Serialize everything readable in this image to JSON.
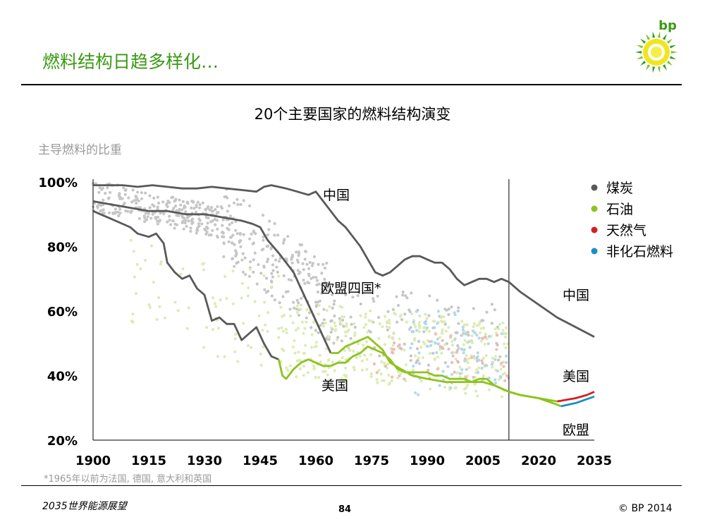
{
  "header": {
    "title": "燃料结构日趋多样化…",
    "logo_text": "bp"
  },
  "footer": {
    "left": "2035世界能源展望",
    "page": "84",
    "copyright": "© BP 2014"
  },
  "colors": {
    "title_green": "#3a9a14",
    "coal": "#595959",
    "oil": "#8dc41c",
    "gas": "#d42020",
    "non_fossil": "#1a8fc4"
  },
  "chart_data": {
    "type": "line",
    "title": "20个主要国家的燃料结构演变",
    "ylabel": "主导燃料的比重",
    "xlim": [
      1900,
      2035
    ],
    "ylim": [
      20,
      100
    ],
    "x_ticks": [
      1900,
      1915,
      1930,
      1945,
      1960,
      1975,
      1990,
      2005,
      2020,
      2035
    ],
    "y_ticks": [
      {
        "v": 20,
        "label": "20%"
      },
      {
        "v": 40,
        "label": "40%"
      },
      {
        "v": 60,
        "label": "60%"
      },
      {
        "v": 80,
        "label": "80%"
      },
      {
        "v": 100,
        "label": "100%"
      }
    ],
    "projection_start": 2012,
    "footnote": "*1965年以前为法国, 德国, 意大利和英国",
    "legend": [
      {
        "name": "煤炭",
        "color": "#595959"
      },
      {
        "name": "石油",
        "color": "#8dc41c"
      },
      {
        "name": "天然气",
        "color": "#d42020"
      },
      {
        "name": "非化石燃料",
        "color": "#1a8fc4"
      }
    ],
    "annotations": [
      {
        "text": "中国",
        "x": 1901,
        "y": 91
      },
      {
        "text": "欧盟四国*",
        "x": 1901,
        "y": 75
      },
      {
        "text": "美国",
        "x": 1901,
        "y": 61
      },
      {
        "text": "中国",
        "x": 2015,
        "y": 63
      },
      {
        "text": "美国",
        "x": 2015,
        "y": 40
      },
      {
        "text": "欧盟",
        "x": 2015,
        "y": 23
      }
    ],
    "series": [
      {
        "name": "中国",
        "segments": [
          {
            "fuel": "coal",
            "points": [
              [
                1900,
                99
              ],
              [
                1904,
                99
              ],
              [
                1908,
                99
              ],
              [
                1912,
                98.5
              ],
              [
                1916,
                99
              ],
              [
                1920,
                98.5
              ],
              [
                1924,
                98
              ],
              [
                1928,
                98
              ],
              [
                1932,
                98.5
              ],
              [
                1936,
                98
              ],
              [
                1940,
                97.5
              ],
              [
                1944,
                97
              ],
              [
                1946,
                98.5
              ],
              [
                1948,
                99
              ],
              [
                1950,
                98.5
              ],
              [
                1952,
                98
              ],
              [
                1955,
                97
              ],
              [
                1958,
                96
              ],
              [
                1960,
                97
              ],
              [
                1962,
                94
              ],
              [
                1964,
                91
              ],
              [
                1966,
                88
              ],
              [
                1968,
                86
              ],
              [
                1970,
                83
              ],
              [
                1972,
                80
              ],
              [
                1974,
                76
              ],
              [
                1976,
                72
              ],
              [
                1978,
                71
              ],
              [
                1980,
                72
              ],
              [
                1982,
                74
              ],
              [
                1984,
                76
              ],
              [
                1986,
                77
              ],
              [
                1988,
                77
              ],
              [
                1990,
                76
              ],
              [
                1992,
                75
              ],
              [
                1994,
                75
              ],
              [
                1996,
                73
              ],
              [
                1998,
                70
              ],
              [
                2000,
                68
              ],
              [
                2002,
                69
              ],
              [
                2004,
                70
              ],
              [
                2006,
                70
              ],
              [
                2008,
                69
              ],
              [
                2010,
                70
              ],
              [
                2012,
                69
              ],
              [
                2015,
                66
              ],
              [
                2020,
                62
              ],
              [
                2025,
                58
              ],
              [
                2030,
                55
              ],
              [
                2035,
                52
              ]
            ]
          }
        ]
      },
      {
        "name": "欧盟四国*",
        "segments": [
          {
            "fuel": "coal",
            "points": [
              [
                1900,
                94
              ],
              [
                1905,
                93
              ],
              [
                1910,
                92
              ],
              [
                1915,
                91
              ],
              [
                1920,
                91
              ],
              [
                1925,
                90
              ],
              [
                1930,
                90
              ],
              [
                1935,
                89
              ],
              [
                1940,
                88
              ],
              [
                1943,
                87
              ],
              [
                1945,
                86
              ],
              [
                1947,
                82
              ],
              [
                1950,
                78
              ],
              [
                1952,
                75
              ],
              [
                1954,
                72
              ],
              [
                1956,
                67
              ],
              [
                1958,
                62
              ],
              [
                1960,
                57
              ],
              [
                1962,
                52
              ],
              [
                1964,
                47
              ]
            ]
          },
          {
            "fuel": "oil",
            "points": [
              [
                1964,
                47
              ],
              [
                1966,
                47
              ],
              [
                1968,
                49
              ],
              [
                1970,
                50
              ],
              [
                1972,
                51
              ],
              [
                1974,
                52
              ],
              [
                1976,
                50
              ],
              [
                1978,
                48
              ],
              [
                1980,
                44
              ],
              [
                1983,
                42
              ],
              [
                1986,
                40
              ],
              [
                1990,
                39
              ],
              [
                1995,
                38
              ],
              [
                2000,
                38
              ],
              [
                2005,
                38
              ],
              [
                2008,
                37
              ],
              [
                2010,
                36
              ],
              [
                2012,
                35
              ],
              [
                2015,
                34
              ],
              [
                2020,
                33
              ],
              [
                2025,
                31
              ],
              [
                2026,
                30.5
              ]
            ]
          },
          {
            "fuel": "non_fossil",
            "points": [
              [
                2026,
                30.5
              ],
              [
                2030,
                31.5
              ],
              [
                2035,
                33.5
              ]
            ]
          }
        ]
      },
      {
        "name": "美国",
        "segments": [
          {
            "fuel": "coal",
            "points": [
              [
                1900,
                91
              ],
              [
                1902,
                90
              ],
              [
                1904,
                89
              ],
              [
                1906,
                88
              ],
              [
                1908,
                87
              ],
              [
                1910,
                86
              ],
              [
                1912,
                84
              ],
              [
                1915,
                83
              ],
              [
                1917,
                84
              ],
              [
                1919,
                81
              ],
              [
                1920,
                75
              ],
              [
                1922,
                72
              ],
              [
                1924,
                70
              ],
              [
                1926,
                71
              ],
              [
                1928,
                67
              ],
              [
                1930,
                65
              ],
              [
                1932,
                57
              ],
              [
                1934,
                58
              ],
              [
                1936,
                56
              ],
              [
                1938,
                56
              ],
              [
                1940,
                51
              ],
              [
                1942,
                53
              ],
              [
                1944,
                55
              ],
              [
                1946,
                50
              ],
              [
                1948,
                46
              ],
              [
                1950,
                45
              ]
            ]
          },
          {
            "fuel": "oil",
            "points": [
              [
                1950,
                45
              ],
              [
                1951,
                40
              ],
              [
                1952,
                39
              ],
              [
                1954,
                42
              ],
              [
                1956,
                44
              ],
              [
                1958,
                45
              ],
              [
                1960,
                44
              ],
              [
                1962,
                43
              ],
              [
                1964,
                43
              ],
              [
                1966,
                44
              ],
              [
                1968,
                44
              ],
              [
                1970,
                46
              ],
              [
                1972,
                47
              ],
              [
                1974,
                49
              ],
              [
                1976,
                48
              ],
              [
                1978,
                47
              ],
              [
                1980,
                45
              ],
              [
                1982,
                42
              ],
              [
                1984,
                41
              ],
              [
                1986,
                41
              ],
              [
                1988,
                41
              ],
              [
                1990,
                41
              ],
              [
                1992,
                40
              ],
              [
                1994,
                40
              ],
              [
                1996,
                39
              ],
              [
                1998,
                39
              ],
              [
                2000,
                39
              ],
              [
                2002,
                38
              ],
              [
                2004,
                39
              ],
              [
                2006,
                39
              ],
              [
                2008,
                37
              ],
              [
                2010,
                36
              ],
              [
                2012,
                35
              ],
              [
                2015,
                34
              ],
              [
                2020,
                33
              ],
              [
                2025,
                32
              ]
            ]
          },
          {
            "fuel": "gas",
            "points": [
              [
                2025,
                32
              ],
              [
                2030,
                33
              ],
              [
                2033,
                34
              ],
              [
                2035,
                35
              ]
            ]
          }
        ]
      }
    ],
    "scatter_note": "20个国家的背景散点（按燃料着色）"
  }
}
